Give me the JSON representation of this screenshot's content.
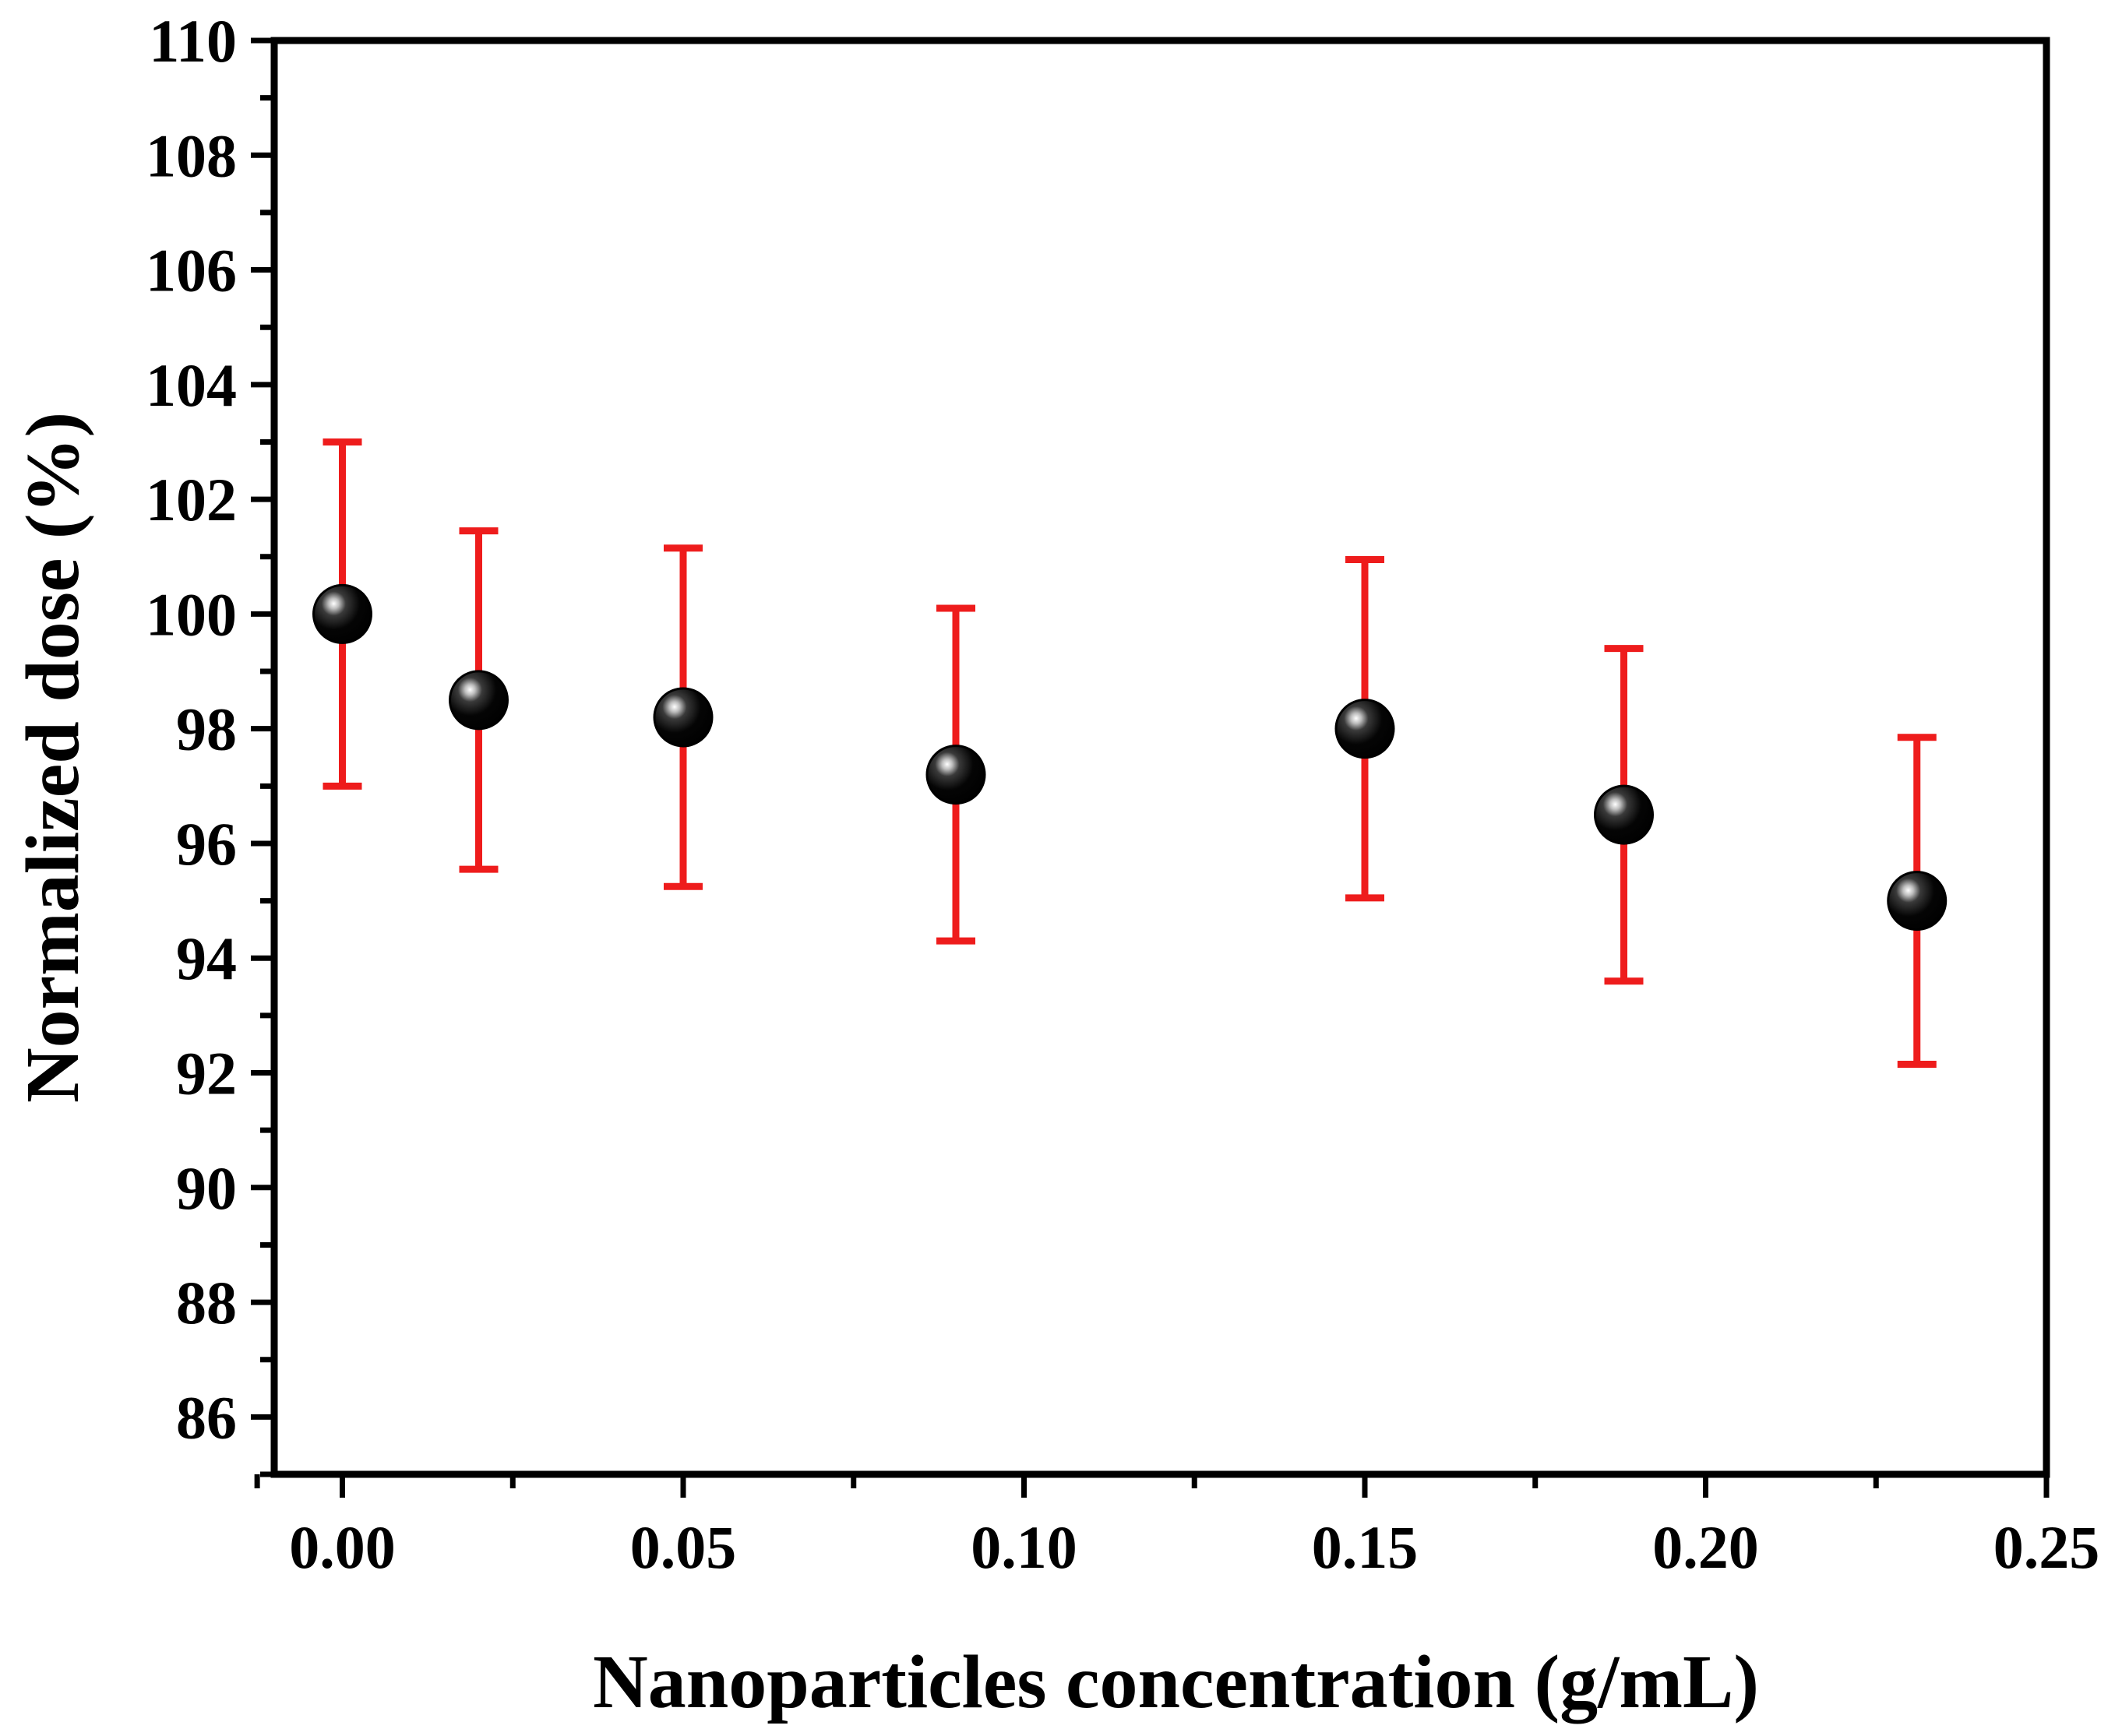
{
  "chart_data": {
    "type": "scatter",
    "title": "",
    "xlabel": "Nanoparticles concentration (g/mL)",
    "ylabel": "Normalized dose (%)",
    "xlim": [
      -0.01,
      0.25
    ],
    "ylim": [
      85,
      110
    ],
    "x_ticks": [
      0.0,
      0.05,
      0.1,
      0.15,
      0.2,
      0.25
    ],
    "x_tick_labels": [
      "0.00",
      "0.05",
      "0.10",
      "0.15",
      "0.20",
      "0.25"
    ],
    "y_ticks": [
      86,
      88,
      90,
      92,
      94,
      96,
      98,
      100,
      102,
      104,
      106,
      108,
      110
    ],
    "y_tick_labels": [
      "86",
      "88",
      "90",
      "92",
      "94",
      "96",
      "98",
      "100",
      "102",
      "104",
      "106",
      "108",
      "110"
    ],
    "grid": false,
    "series": [
      {
        "name": "Normalized dose",
        "marker_color": "#000000",
        "error_color": "#ee1c1c",
        "points": [
          {
            "x": 0.0,
            "y": 100.0,
            "err_low": 97.0,
            "err_high": 103.0
          },
          {
            "x": 0.02,
            "y": 98.5,
            "err_low": 95.55,
            "err_high": 101.45
          },
          {
            "x": 0.05,
            "y": 98.2,
            "err_low": 95.25,
            "err_high": 101.15
          },
          {
            "x": 0.09,
            "y": 97.2,
            "err_low": 94.3,
            "err_high": 100.1
          },
          {
            "x": 0.15,
            "y": 98.0,
            "err_low": 95.05,
            "err_high": 100.95
          },
          {
            "x": 0.188,
            "y": 96.5,
            "err_low": 93.6,
            "err_high": 99.4
          },
          {
            "x": 0.231,
            "y": 95.0,
            "err_low": 92.15,
            "err_high": 97.85
          }
        ]
      }
    ]
  }
}
